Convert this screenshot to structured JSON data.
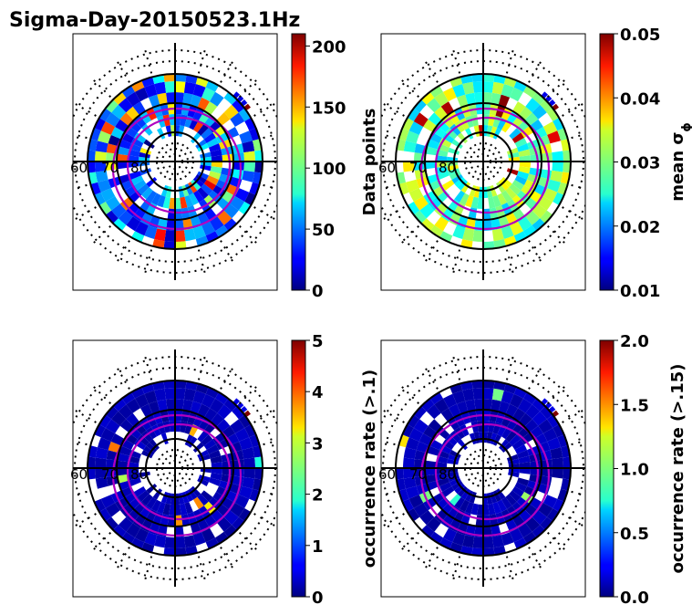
{
  "figure": {
    "title": "Sigma-Day-20150523.1Hz"
  },
  "chart_data": [
    {
      "type": "heatmap",
      "projection": "polar",
      "lat_ring_labels": [
        "60",
        "70",
        "80"
      ],
      "colormap": "jet",
      "fill_style": "mixed",
      "colorbar": {
        "label": "Data points",
        "range": [
          0,
          210
        ],
        "ticks": [
          "0",
          "50",
          "100",
          "150",
          "200"
        ],
        "tick_values": [
          0,
          50,
          100,
          150,
          200
        ]
      }
    },
    {
      "type": "heatmap",
      "projection": "polar",
      "lat_ring_labels": [
        "60",
        "70",
        "80"
      ],
      "colormap": "jet",
      "fill_style": "cyan",
      "colorbar": {
        "label": "mean σ",
        "label_subscript": "ϕ",
        "range": [
          0.01,
          0.05
        ],
        "ticks": [
          "0.01",
          "0.02",
          "0.03",
          "0.04",
          "0.05"
        ],
        "tick_values": [
          0.01,
          0.02,
          0.03,
          0.04,
          0.05
        ]
      }
    },
    {
      "type": "heatmap",
      "projection": "polar",
      "lat_ring_labels": [
        "60",
        "70",
        "80"
      ],
      "colormap": "jet",
      "fill_style": "dark",
      "colorbar": {
        "label": "occurrence rate (>.1)",
        "range": [
          0,
          5
        ],
        "ticks": [
          "0",
          "1",
          "2",
          "3",
          "4",
          "5"
        ],
        "tick_values": [
          0,
          1,
          2,
          3,
          4,
          5
        ]
      }
    },
    {
      "type": "heatmap",
      "projection": "polar",
      "lat_ring_labels": [
        "60",
        "70",
        "80"
      ],
      "colormap": "jet",
      "fill_style": "dark",
      "colorbar": {
        "label": "occurrence rate (>.15)",
        "range": [
          0,
          2
        ],
        "ticks": [
          "0.0",
          "0.5",
          "1.0",
          "1.5",
          "2.0"
        ],
        "tick_values": [
          0,
          0.5,
          1.0,
          1.5,
          2.0
        ]
      }
    }
  ]
}
